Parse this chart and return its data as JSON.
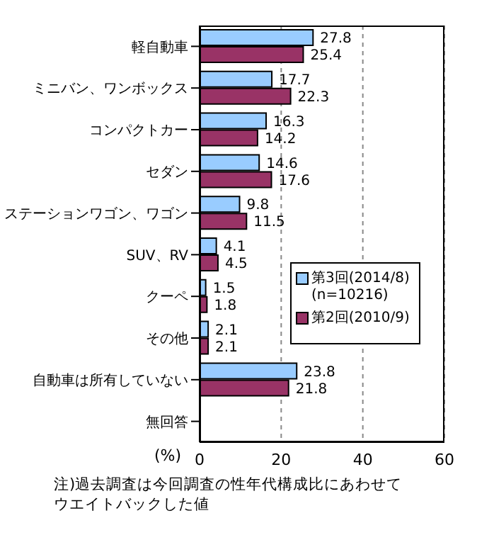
{
  "chart_data": {
    "type": "bar",
    "orientation": "horizontal",
    "categories": [
      "軽自動車",
      "ミニバン、ワンボックス",
      "コンパクトカー",
      "セダン",
      "ステーションワゴン、ワゴン",
      "SUV、RV",
      "クーペ",
      "その他",
      "自動車は所有していない",
      "無回答"
    ],
    "series": [
      {
        "name": "第3回(2014/8)(n=10216)",
        "color": "#99ccff",
        "values": [
          27.8,
          17.7,
          16.3,
          14.6,
          9.8,
          4.1,
          1.5,
          2.1,
          23.8,
          null
        ]
      },
      {
        "name": "第2回(2010/9)",
        "color": "#993366",
        "values": [
          25.4,
          22.3,
          14.2,
          17.6,
          11.5,
          4.5,
          1.8,
          2.1,
          21.8,
          null
        ]
      }
    ],
    "xlim": [
      0,
      60
    ],
    "xticks": [
      0,
      20,
      40,
      60
    ],
    "xlabel": "(%)",
    "grid": "x",
    "legend": "right",
    "data_labels": true,
    "annotations": [
      "注)過去調査は今回調査の性年代構成比にあわせてウエイトバックした値"
    ]
  }
}
